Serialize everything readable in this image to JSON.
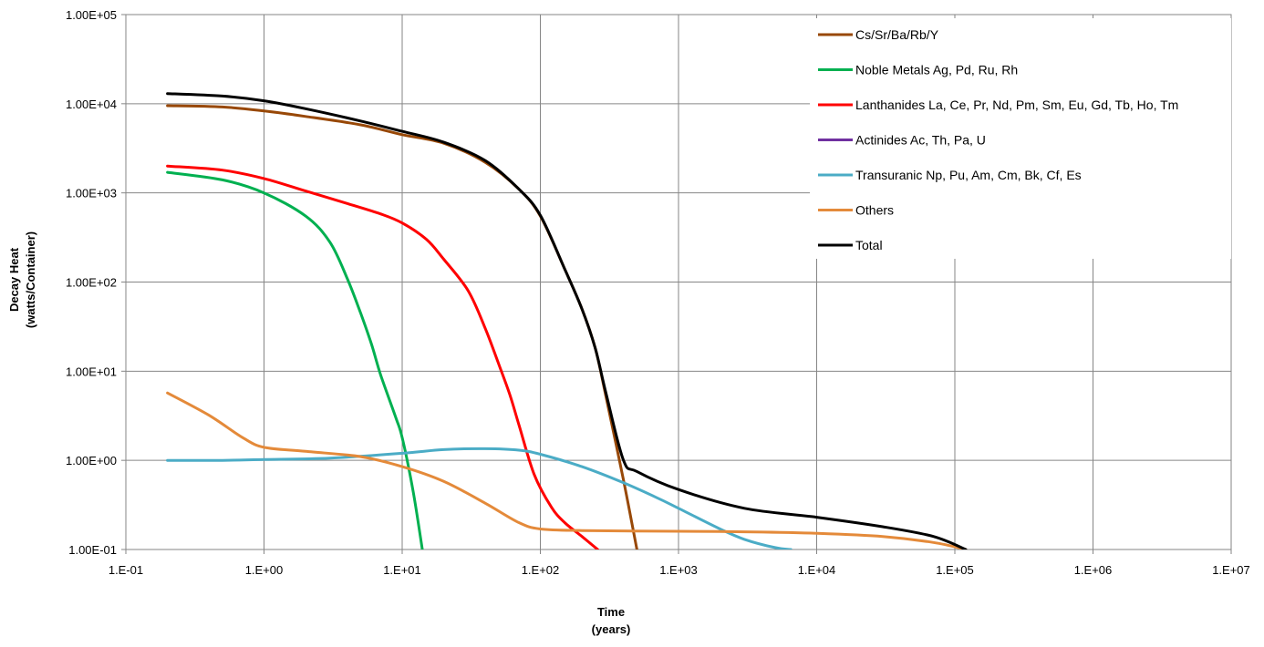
{
  "chart_data": {
    "type": "line",
    "title": "",
    "xlabel": "Time",
    "xlabel_unit": "(years)",
    "ylabel": "Decay Heat",
    "ylabel_unit": "(watts/Container)",
    "x_scale": "log",
    "y_scale": "log",
    "xlim": [
      0.1,
      10000000
    ],
    "ylim": [
      0.1,
      100000
    ],
    "grid": true,
    "legend_position": "top-right",
    "x_tick_labels": [
      "1.E-01",
      "1.E+00",
      "1.E+01",
      "1.E+02",
      "1.E+03",
      "1.E+04",
      "1.E+05",
      "1.E+06",
      "1.E+07"
    ],
    "y_tick_labels": [
      "1.00E-01",
      "1.00E+00",
      "1.00E+01",
      "1.00E+02",
      "1.00E+03",
      "1.00E+04",
      "1.00E+05"
    ],
    "series": [
      {
        "name": "Cs/Sr/Ba/Rb/Y",
        "color": "#984807",
        "points": [
          [
            0.2,
            9500
          ],
          [
            0.5,
            9200
          ],
          [
            1,
            8300
          ],
          [
            2,
            7200
          ],
          [
            5,
            5800
          ],
          [
            10,
            4500
          ],
          [
            20,
            3600
          ],
          [
            40,
            2200
          ],
          [
            70,
            1100
          ],
          [
            100,
            550
          ],
          [
            150,
            140
          ],
          [
            200,
            50
          ],
          [
            250,
            18
          ],
          [
            300,
            5
          ],
          [
            400,
            0.6
          ],
          [
            500,
            0.1
          ]
        ]
      },
      {
        "name": "Noble Metals Ag, Pd, Ru, Rh",
        "color": "#00B050",
        "points": [
          [
            0.2,
            1700
          ],
          [
            0.5,
            1400
          ],
          [
            1,
            1000
          ],
          [
            2,
            550
          ],
          [
            3,
            280
          ],
          [
            4,
            110
          ],
          [
            5,
            45
          ],
          [
            6,
            20
          ],
          [
            7,
            9
          ],
          [
            9,
            3
          ],
          [
            10,
            1.8
          ],
          [
            12,
            0.45
          ],
          [
            14,
            0.1
          ]
        ]
      },
      {
        "name": "Lanthanides La, Ce, Pr, Nd, Pm, Sm, Eu, Gd, Tb, Ho, Tm",
        "color": "#FF0000",
        "points": [
          [
            0.2,
            2000
          ],
          [
            0.5,
            1800
          ],
          [
            1,
            1450
          ],
          [
            2,
            1050
          ],
          [
            4,
            760
          ],
          [
            7,
            580
          ],
          [
            10,
            460
          ],
          [
            15,
            300
          ],
          [
            20,
            180
          ],
          [
            30,
            80
          ],
          [
            40,
            30
          ],
          [
            50,
            12
          ],
          [
            60,
            5.5
          ],
          [
            70,
            2.5
          ],
          [
            90,
            0.7
          ],
          [
            120,
            0.3
          ],
          [
            150,
            0.2
          ],
          [
            200,
            0.14
          ],
          [
            260,
            0.1
          ]
        ]
      },
      {
        "name": "Actinides Ac, Th, Pa, U",
        "color": "#7030A0",
        "points": []
      },
      {
        "name": "Transuranic Np, Pu, Am, Cm, Bk, Cf, Es",
        "color": "#4BACC6",
        "points": [
          [
            0.2,
            1.0
          ],
          [
            0.5,
            1.0
          ],
          [
            1,
            1.02
          ],
          [
            3,
            1.06
          ],
          [
            10,
            1.2
          ],
          [
            20,
            1.32
          ],
          [
            40,
            1.35
          ],
          [
            70,
            1.3
          ],
          [
            100,
            1.17
          ],
          [
            200,
            0.85
          ],
          [
            400,
            0.56
          ],
          [
            700,
            0.38
          ],
          [
            1000,
            0.29
          ],
          [
            2000,
            0.17
          ],
          [
            3000,
            0.13
          ],
          [
            5000,
            0.105
          ],
          [
            6500,
            0.1
          ]
        ]
      },
      {
        "name": "Others",
        "color": "#E48A3A",
        "points": [
          [
            0.2,
            5.7
          ],
          [
            0.4,
            3.2
          ],
          [
            0.7,
            1.8
          ],
          [
            1,
            1.4
          ],
          [
            2,
            1.26
          ],
          [
            5,
            1.1
          ],
          [
            10,
            0.85
          ],
          [
            20,
            0.58
          ],
          [
            40,
            0.33
          ],
          [
            70,
            0.2
          ],
          [
            100,
            0.17
          ],
          [
            200,
            0.163
          ],
          [
            1000,
            0.16
          ],
          [
            3000,
            0.158
          ],
          [
            10000,
            0.152
          ],
          [
            30000,
            0.14
          ],
          [
            70000,
            0.12
          ],
          [
            120000,
            0.1
          ]
        ]
      },
      {
        "name": "Total",
        "color": "#000000",
        "points": [
          [
            0.2,
            13000
          ],
          [
            0.5,
            12200
          ],
          [
            1,
            10800
          ],
          [
            2,
            8800
          ],
          [
            5,
            6400
          ],
          [
            10,
            4900
          ],
          [
            20,
            3700
          ],
          [
            40,
            2300
          ],
          [
            70,
            1100
          ],
          [
            100,
            560
          ],
          [
            150,
            140
          ],
          [
            200,
            50
          ],
          [
            250,
            18
          ],
          [
            300,
            5.5
          ],
          [
            400,
            1.0
          ],
          [
            500,
            0.75
          ],
          [
            1000,
            0.47
          ],
          [
            3000,
            0.29
          ],
          [
            10000,
            0.23
          ],
          [
            30000,
            0.18
          ],
          [
            70000,
            0.14
          ],
          [
            120000,
            0.1
          ]
        ]
      }
    ]
  }
}
